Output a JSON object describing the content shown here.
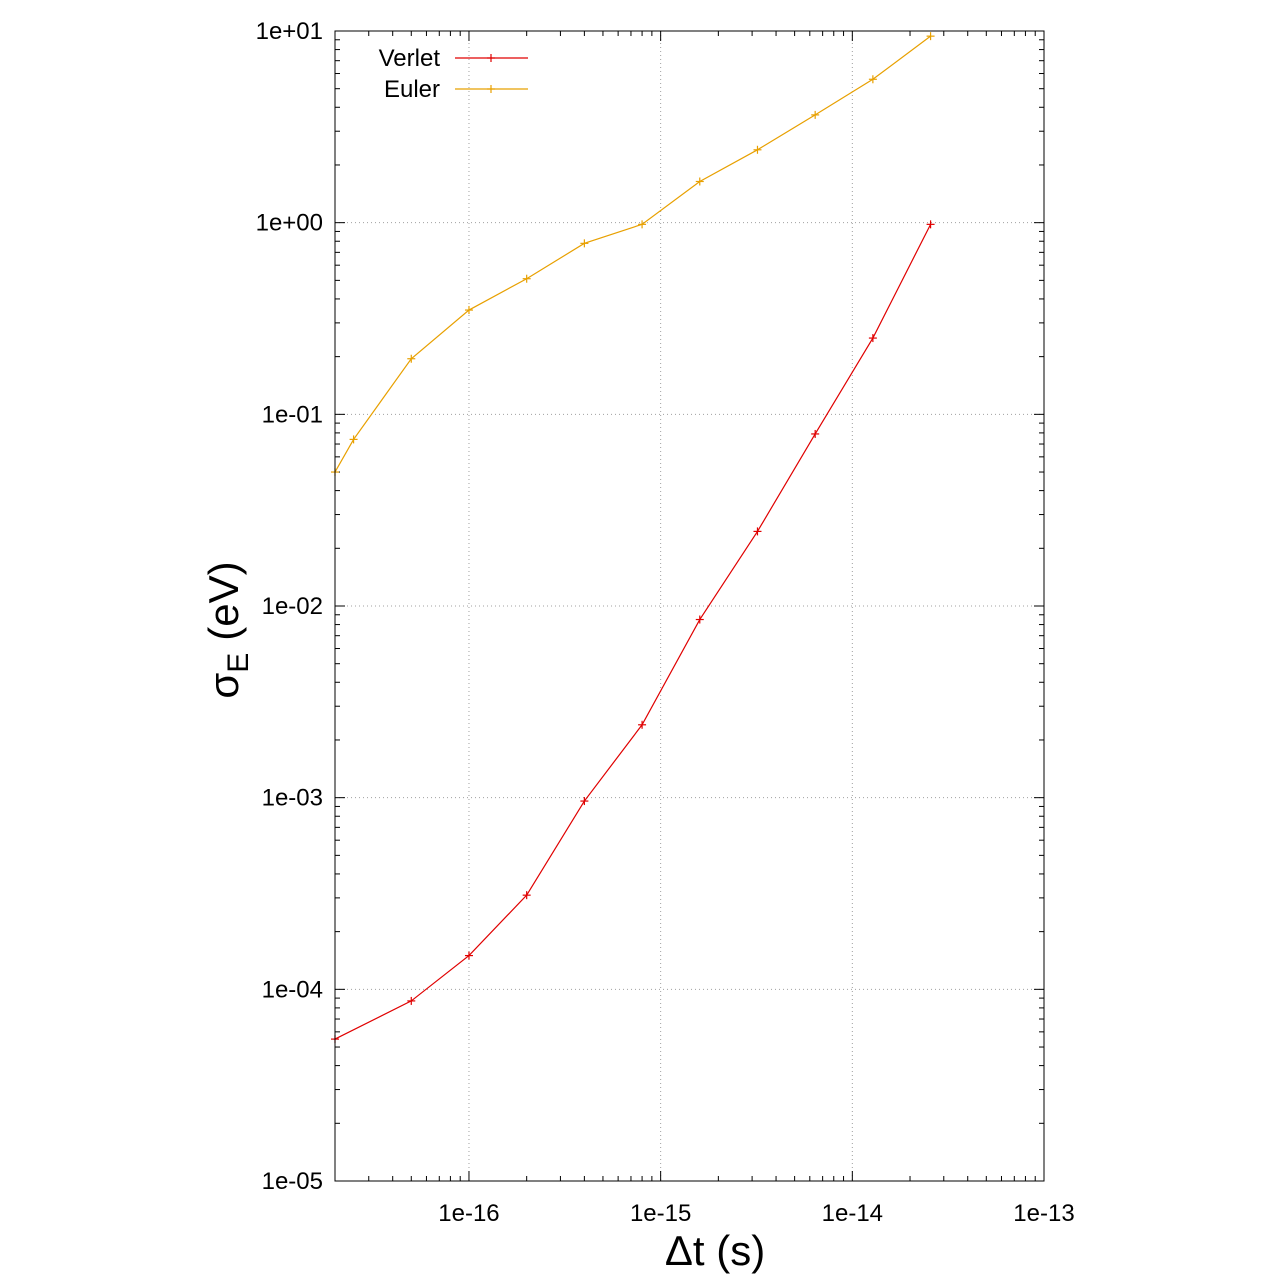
{
  "chart_data": {
    "type": "line",
    "xlabel": "Δt (s)",
    "ylabel": "σE (eV)",
    "ylabel_symbol": "σ",
    "ylabel_subscript": "E",
    "ylabel_unit": "(eV)",
    "xscale": "log",
    "yscale": "log",
    "xlim": [
      2e-17,
      1e-13
    ],
    "ylim": [
      1e-05,
      10
    ],
    "x_ticks": [
      1e-16,
      1e-15,
      1e-14,
      1e-13
    ],
    "x_tick_labels": [
      "1e-16",
      "1e-15",
      "1e-14",
      "1e-13"
    ],
    "y_ticks": [
      1e-05,
      0.0001,
      0.001,
      0.01,
      0.1,
      1,
      10
    ],
    "y_tick_labels": [
      "1e-05",
      "1e-04",
      "1e-03",
      "1e-02",
      "1e-01",
      "1e+00",
      "1e+01"
    ],
    "grid": true,
    "legend_position": "top-left",
    "series": [
      {
        "name": "Verlet",
        "color": "#e00000",
        "marker": "plus",
        "points": [
          [
            2e-17,
            5.5e-05
          ],
          [
            5e-17,
            8.7e-05
          ],
          [
            1e-16,
            0.00015
          ],
          [
            2e-16,
            0.00031
          ],
          [
            4e-16,
            0.00096
          ],
          [
            8e-16,
            0.0024
          ],
          [
            1.6e-15,
            0.0085
          ],
          [
            3.2e-15,
            0.0245
          ],
          [
            6.4e-15,
            0.079
          ],
          [
            1.28e-14,
            0.25
          ],
          [
            2.56e-14,
            0.98
          ]
        ]
      },
      {
        "name": "Euler",
        "color": "#e8a000",
        "marker": "plus",
        "points": [
          [
            2e-17,
            0.05
          ],
          [
            2.5e-17,
            0.074
          ],
          [
            5e-17,
            0.195
          ],
          [
            1e-16,
            0.35
          ],
          [
            2e-16,
            0.51
          ],
          [
            4e-16,
            0.78
          ],
          [
            8e-16,
            0.98
          ],
          [
            1.6e-15,
            1.64
          ],
          [
            3.2e-15,
            2.4
          ],
          [
            6.4e-15,
            3.65
          ],
          [
            1.28e-14,
            5.6
          ],
          [
            2.56e-14,
            9.4
          ]
        ]
      }
    ]
  }
}
